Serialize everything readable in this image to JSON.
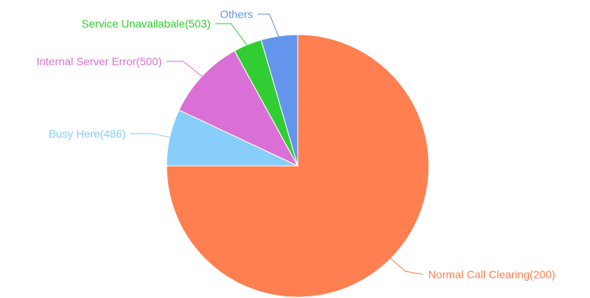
{
  "chart_data": {
    "type": "pie",
    "slices": [
      {
        "label": "Normal Call Clearing(200)",
        "value": 75,
        "color": "#ff7f50"
      },
      {
        "label": "Busy Here(486)",
        "value": 7,
        "color": "#87cefa"
      },
      {
        "label": "Internal Server Error(500)",
        "value": 10,
        "color": "#da70d6"
      },
      {
        "label": "Service Unavailabale(503)",
        "value": 3.5,
        "color": "#32cd32"
      },
      {
        "label": "Others",
        "value": 4.5,
        "color": "#6495ed"
      }
    ]
  }
}
